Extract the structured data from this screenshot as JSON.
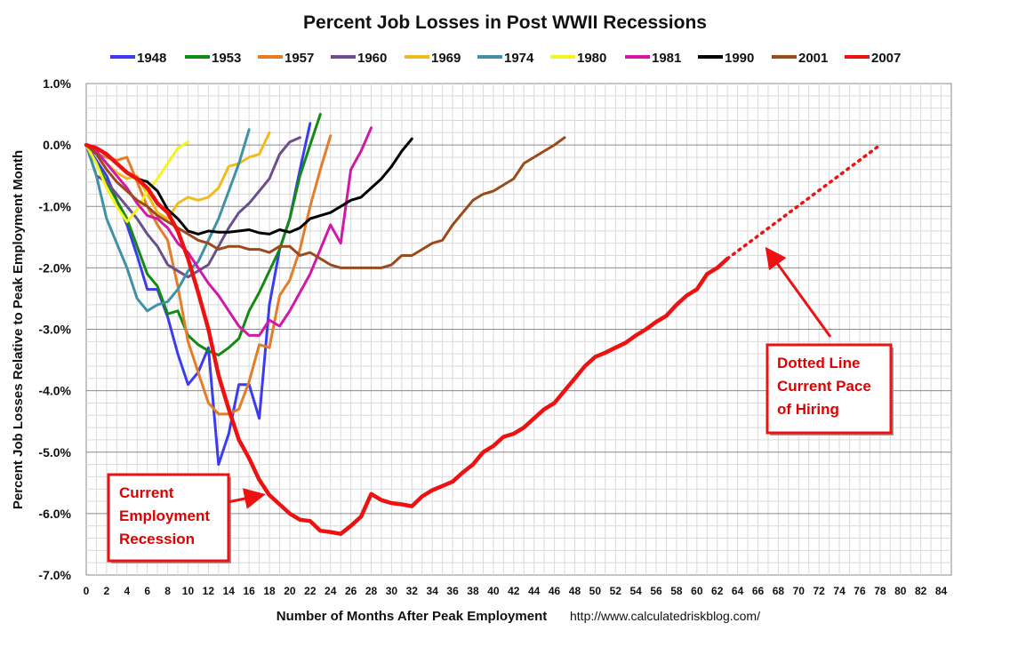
{
  "chart_data": {
    "type": "line",
    "title": "Percent Job Losses in Post WWII Recessions",
    "xlabel": "Number of Months After Peak Employment",
    "ylabel": "Percent Job Losses Relative to Peak Employment Month",
    "source": "http://www.calculatedriskblog.com/",
    "xlim": [
      0,
      85
    ],
    "ylim": [
      -7.0,
      1.0
    ],
    "x_ticks": [
      "0",
      "2",
      "4",
      "6",
      "8",
      "10",
      "12",
      "14",
      "16",
      "18",
      "20",
      "22",
      "24",
      "26",
      "28",
      "30",
      "32",
      "34",
      "36",
      "38",
      "40",
      "42",
      "44",
      "46",
      "48",
      "50",
      "52",
      "54",
      "56",
      "58",
      "60",
      "62",
      "64",
      "66",
      "68",
      "70",
      "72",
      "74",
      "76",
      "78",
      "80",
      "82",
      "84"
    ],
    "y_ticks": [
      "1.0%",
      "0.0%",
      "-1.0%",
      "-2.0%",
      "-3.0%",
      "-4.0%",
      "-5.0%",
      "-6.0%",
      "-7.0%"
    ],
    "grid": true,
    "legend_position": "top",
    "series": [
      {
        "name": "1948",
        "color": "#3b3bf0",
        "x": [
          0,
          1,
          2,
          3,
          4,
          5,
          6,
          7,
          8,
          9,
          10,
          11,
          12,
          13,
          14,
          15,
          16,
          17,
          18,
          19,
          20,
          21,
          22
        ],
        "y": [
          0,
          -0.25,
          -0.5,
          -0.9,
          -1.3,
          -1.8,
          -2.35,
          -2.35,
          -2.8,
          -3.4,
          -3.9,
          -3.7,
          -3.3,
          -5.2,
          -4.7,
          -3.9,
          -3.9,
          -4.45,
          -2.6,
          -1.7,
          -1.2,
          -0.4,
          0.35
        ]
      },
      {
        "name": "1953",
        "color": "#138a13",
        "x": [
          0,
          1,
          2,
          3,
          4,
          5,
          6,
          7,
          8,
          9,
          10,
          11,
          12,
          13,
          14,
          15,
          16,
          17,
          18,
          19,
          20,
          21,
          22,
          23
        ],
        "y": [
          0,
          -0.3,
          -0.6,
          -0.9,
          -1.2,
          -1.65,
          -2.1,
          -2.3,
          -2.75,
          -2.7,
          -3.1,
          -3.25,
          -3.35,
          -3.42,
          -3.3,
          -3.15,
          -2.7,
          -2.4,
          -2.05,
          -1.7,
          -1.2,
          -0.5,
          0.0,
          0.5
        ]
      },
      {
        "name": "1957",
        "color": "#e37d29",
        "x": [
          0,
          1,
          2,
          3,
          4,
          5,
          6,
          7,
          8,
          9,
          10,
          11,
          12,
          13,
          14,
          15,
          16,
          17,
          18,
          19,
          20,
          21,
          22,
          23,
          24
        ],
        "y": [
          0,
          -0.15,
          -0.2,
          -0.25,
          -0.2,
          -0.6,
          -1.0,
          -1.3,
          -1.55,
          -2.3,
          -3.2,
          -3.7,
          -4.2,
          -4.38,
          -4.38,
          -4.3,
          -3.85,
          -3.25,
          -3.3,
          -2.45,
          -2.2,
          -1.7,
          -1.0,
          -0.4,
          0.15
        ]
      },
      {
        "name": "1960",
        "color": "#6d4e8c",
        "x": [
          0,
          1,
          2,
          3,
          4,
          5,
          6,
          7,
          8,
          9,
          10,
          11,
          12,
          13,
          14,
          15,
          16,
          17,
          18,
          19,
          20,
          21
        ],
        "y": [
          0,
          -0.5,
          -0.6,
          -0.8,
          -1.0,
          -1.2,
          -1.45,
          -1.65,
          -1.95,
          -2.05,
          -2.15,
          -2.05,
          -1.95,
          -1.65,
          -1.35,
          -1.1,
          -0.95,
          -0.75,
          -0.55,
          -0.15,
          0.05,
          0.12
        ]
      },
      {
        "name": "1969",
        "color": "#f2bb1b",
        "x": [
          0,
          1,
          2,
          3,
          4,
          5,
          6,
          7,
          8,
          9,
          10,
          11,
          12,
          13,
          14,
          15,
          16,
          17,
          18
        ],
        "y": [
          0,
          -0.1,
          -0.3,
          -0.45,
          -0.55,
          -0.5,
          -0.8,
          -1.1,
          -1.2,
          -0.95,
          -0.85,
          -0.9,
          -0.85,
          -0.7,
          -0.35,
          -0.3,
          -0.2,
          -0.15,
          0.2
        ]
      },
      {
        "name": "1974",
        "color": "#3f92a5",
        "x": [
          0,
          1,
          2,
          3,
          4,
          5,
          6,
          7,
          8,
          9,
          10,
          11,
          12,
          13,
          14,
          15,
          16
        ],
        "y": [
          0,
          -0.5,
          -1.2,
          -1.6,
          -2.0,
          -2.5,
          -2.7,
          -2.6,
          -2.55,
          -2.35,
          -2.05,
          -1.9,
          -1.55,
          -1.2,
          -0.75,
          -0.3,
          0.25
        ]
      },
      {
        "name": "1980",
        "color": "#f5f51e",
        "x": [
          0,
          1,
          2,
          3,
          4,
          5,
          6,
          7,
          8,
          9,
          10
        ],
        "y": [
          0,
          -0.3,
          -0.7,
          -1.0,
          -1.25,
          -1.05,
          -0.75,
          -0.55,
          -0.3,
          -0.05,
          0.05
        ]
      },
      {
        "name": "1981",
        "color": "#d119a8",
        "x": [
          0,
          1,
          2,
          3,
          4,
          5,
          6,
          7,
          8,
          9,
          10,
          11,
          12,
          13,
          14,
          15,
          16,
          17,
          18,
          19,
          20,
          21,
          22,
          23,
          24,
          25,
          26,
          27,
          28
        ],
        "y": [
          0,
          -0.1,
          -0.3,
          -0.5,
          -0.7,
          -0.95,
          -1.15,
          -1.2,
          -1.35,
          -1.6,
          -1.75,
          -2.0,
          -2.25,
          -2.45,
          -2.7,
          -2.95,
          -3.1,
          -3.1,
          -2.85,
          -2.95,
          -2.7,
          -2.4,
          -2.1,
          -1.7,
          -1.3,
          -1.6,
          -0.4,
          -0.1,
          0.28
        ]
      },
      {
        "name": "1990",
        "color": "#000000",
        "x": [
          0,
          1,
          2,
          3,
          4,
          5,
          6,
          7,
          8,
          9,
          10,
          11,
          12,
          13,
          14,
          15,
          16,
          17,
          18,
          19,
          20,
          21,
          22,
          23,
          24,
          25,
          26,
          27,
          28,
          29,
          30,
          31,
          32
        ],
        "y": [
          0,
          -0.05,
          -0.15,
          -0.3,
          -0.45,
          -0.55,
          -0.6,
          -0.75,
          -1.05,
          -1.2,
          -1.4,
          -1.45,
          -1.4,
          -1.42,
          -1.42,
          -1.4,
          -1.38,
          -1.43,
          -1.45,
          -1.38,
          -1.42,
          -1.35,
          -1.2,
          -1.15,
          -1.1,
          -1.0,
          -0.9,
          -0.85,
          -0.7,
          -0.55,
          -0.35,
          -0.1,
          0.1
        ]
      },
      {
        "name": "2001",
        "color": "#9a4a1c",
        "x": [
          0,
          1,
          2,
          3,
          4,
          5,
          6,
          7,
          8,
          9,
          10,
          11,
          12,
          13,
          14,
          15,
          16,
          17,
          18,
          19,
          20,
          21,
          22,
          23,
          24,
          25,
          26,
          27,
          28,
          29,
          30,
          31,
          32,
          33,
          34,
          35,
          36,
          37,
          38,
          39,
          40,
          41,
          42,
          43,
          44,
          45,
          46,
          47
        ],
        "y": [
          0,
          -0.15,
          -0.4,
          -0.6,
          -0.75,
          -0.9,
          -1.0,
          -1.15,
          -1.25,
          -1.35,
          -1.45,
          -1.55,
          -1.6,
          -1.7,
          -1.65,
          -1.65,
          -1.7,
          -1.7,
          -1.75,
          -1.65,
          -1.65,
          -1.8,
          -1.75,
          -1.85,
          -1.95,
          -2.0,
          -2.0,
          -2.0,
          -2.0,
          -2.0,
          -1.95,
          -1.8,
          -1.8,
          -1.7,
          -1.6,
          -1.55,
          -1.3,
          -1.1,
          -0.9,
          -0.8,
          -0.75,
          -0.65,
          -0.55,
          -0.3,
          -0.2,
          -0.1,
          0.0,
          0.12
        ]
      },
      {
        "name": "2007",
        "color": "#ee1111",
        "x": [
          0,
          1,
          2,
          3,
          4,
          5,
          6,
          7,
          8,
          9,
          10,
          11,
          12,
          13,
          14,
          15,
          16,
          17,
          18,
          19,
          20,
          21,
          22,
          23,
          24,
          25,
          26,
          27,
          28,
          29,
          30,
          31,
          32,
          33,
          34,
          35,
          36,
          37,
          38,
          39,
          40,
          41,
          42,
          43,
          44,
          45,
          46,
          47,
          48,
          49,
          50,
          51,
          52,
          53,
          54,
          55,
          56,
          57,
          58,
          59,
          60,
          61,
          62,
          63
        ],
        "y": [
          0,
          -0.05,
          -0.15,
          -0.3,
          -0.45,
          -0.55,
          -0.7,
          -0.95,
          -1.1,
          -1.4,
          -1.85,
          -2.4,
          -3.0,
          -3.75,
          -4.3,
          -4.8,
          -5.1,
          -5.45,
          -5.7,
          -5.85,
          -6.0,
          -6.1,
          -6.12,
          -6.28,
          -6.3,
          -6.33,
          -6.2,
          -6.05,
          -5.68,
          -5.78,
          -5.83,
          -5.85,
          -5.88,
          -5.72,
          -5.62,
          -5.55,
          -5.48,
          -5.33,
          -5.2,
          -5.0,
          -4.9,
          -4.75,
          -4.7,
          -4.6,
          -4.45,
          -4.3,
          -4.2,
          -4.0,
          -3.8,
          -3.6,
          -3.45,
          -3.38,
          -3.3,
          -3.22,
          -3.1,
          -3.0,
          -2.88,
          -2.78,
          -2.6,
          -2.45,
          -2.35,
          -2.1,
          -2.0,
          -1.85
        ]
      }
    ],
    "projection": {
      "name": "2007 current pace",
      "color": "#ee1111",
      "x": [
        63,
        78
      ],
      "y": [
        -1.85,
        0.0
      ]
    },
    "annotations": [
      {
        "id": "current",
        "lines": [
          "Current",
          "Employment",
          "Recession"
        ]
      },
      {
        "id": "dotted",
        "lines": [
          "Dotted Line",
          "Current Pace",
          "of Hiring"
        ]
      }
    ]
  }
}
